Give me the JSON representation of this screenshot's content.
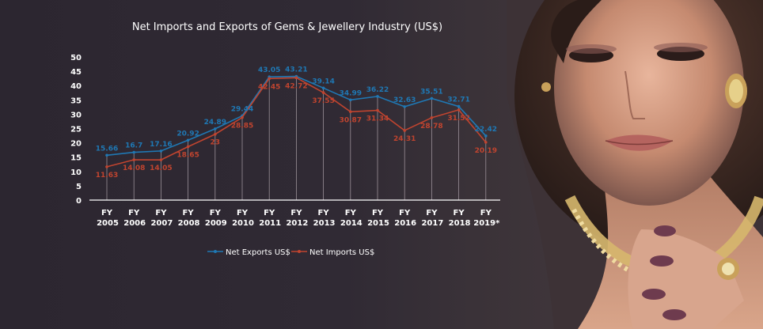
{
  "chart_data": {
    "type": "line",
    "title": "Net Imports and Exports of Gems & Jewellery Industry (US$)",
    "categories_top": [
      "FY",
      "FY",
      "FY",
      "FY",
      "FY",
      "FY",
      "FY",
      "FY",
      "FY",
      "FY",
      "FY",
      "FY",
      "FY",
      "FY",
      "FY"
    ],
    "categories_bottom": [
      "2005",
      "2006",
      "2007",
      "2008",
      "2009",
      "2010",
      "2011",
      "2012",
      "2013",
      "2014",
      "2015",
      "2016",
      "2017",
      "2018",
      "2019*"
    ],
    "yticks": [
      "0",
      "5",
      "10",
      "15",
      "20",
      "25",
      "30",
      "35",
      "40",
      "45",
      "50"
    ],
    "ylim": [
      0,
      50
    ],
    "legend_position": "bottom",
    "series": [
      {
        "name": "Net Exports US$",
        "color": "#1f78b4",
        "values": [
          15.66,
          16.7,
          17.16,
          20.92,
          24.89,
          29.44,
          43.05,
          43.21,
          39.14,
          34.99,
          36.22,
          32.63,
          35.51,
          32.71,
          22.42
        ],
        "labels": [
          "15.66",
          "16.7",
          "17.16",
          "20.92",
          "24.89",
          "29.44",
          "43.05",
          "43.21",
          "39.14",
          "34.99",
          "36.22",
          "32.63",
          "35.51",
          "32.71",
          "22.42"
        ]
      },
      {
        "name": "Net Imports US$",
        "color": "#c0442f",
        "values": [
          11.63,
          14.08,
          14.05,
          18.65,
          23,
          28.85,
          42.45,
          42.72,
          37.55,
          30.87,
          31.34,
          24.31,
          28.78,
          31.52,
          20.19
        ],
        "labels": [
          "11.63",
          "14.08",
          "14.05",
          "18.65",
          "23",
          "28.85",
          "42.45",
          "42.72",
          "37.55",
          "30.87",
          "31.34",
          "24.31",
          "28.78",
          "31.52",
          "20.19"
        ]
      }
    ]
  },
  "photo": {
    "description_icon": "woman-with-jewellery-photo"
  }
}
